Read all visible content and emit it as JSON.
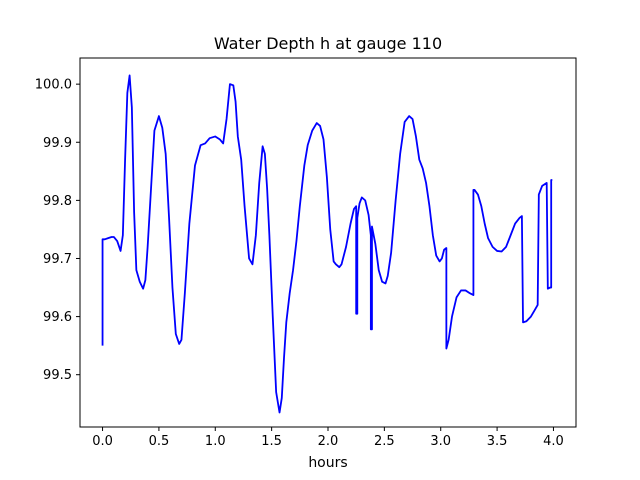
{
  "chart_data": {
    "type": "line",
    "title": "Water Depth h at gauge 110",
    "xlabel": "hours",
    "ylabel": "",
    "xlim": [
      -0.2,
      4.2
    ],
    "ylim": [
      99.41,
      100.045
    ],
    "xticks": [
      0.0,
      0.5,
      1.0,
      1.5,
      2.0,
      2.5,
      3.0,
      3.5,
      4.0
    ],
    "xtick_labels": [
      "0.0",
      "0.5",
      "1.0",
      "1.5",
      "2.0",
      "2.5",
      "3.0",
      "3.5",
      "4.0"
    ],
    "yticks": [
      99.5,
      99.6,
      99.7,
      99.8,
      99.9,
      100.0
    ],
    "ytick_labels": [
      "99.5",
      "99.6",
      "99.7",
      "99.8",
      "99.9",
      "100.0"
    ],
    "grid": false,
    "line_color": "#0000ff",
    "series": [
      {
        "x": [
          0.0,
          0.0,
          0.02,
          0.05,
          0.08,
          0.1,
          0.13,
          0.16,
          0.18,
          0.2,
          0.22,
          0.24,
          0.26,
          0.28,
          0.3,
          0.33,
          0.36,
          0.38,
          0.4,
          0.43,
          0.46,
          0.5,
          0.53,
          0.56,
          0.59,
          0.62,
          0.65,
          0.68,
          0.7,
          0.73,
          0.77,
          0.82,
          0.87,
          0.91,
          0.95,
          1.0,
          1.04,
          1.07,
          1.1,
          1.13,
          1.16,
          1.18,
          1.2,
          1.23,
          1.26,
          1.3,
          1.33,
          1.36,
          1.39,
          1.42,
          1.44,
          1.46,
          1.48,
          1.51,
          1.54,
          1.57,
          1.59,
          1.61,
          1.63,
          1.66,
          1.69,
          1.72,
          1.75,
          1.79,
          1.82,
          1.86,
          1.9,
          1.93,
          1.96,
          1.99,
          2.02,
          2.05,
          2.07,
          2.1,
          2.12,
          2.16,
          2.2,
          2.23,
          2.25,
          2.25,
          2.26,
          2.26,
          2.28,
          2.3,
          2.33,
          2.36,
          2.38,
          2.38,
          2.39,
          2.39,
          2.42,
          2.45,
          2.48,
          2.51,
          2.53,
          2.56,
          2.6,
          2.64,
          2.68,
          2.72,
          2.75,
          2.78,
          2.81,
          2.84,
          2.87,
          2.9,
          2.93,
          2.96,
          2.99,
          3.01,
          3.03,
          3.05,
          3.05,
          3.05,
          3.07,
          3.1,
          3.14,
          3.18,
          3.22,
          3.26,
          3.29,
          3.29,
          3.3,
          3.33,
          3.36,
          3.39,
          3.42,
          3.46,
          3.5,
          3.54,
          3.58,
          3.62,
          3.66,
          3.7,
          3.72,
          3.73,
          3.73,
          3.76,
          3.8,
          3.83,
          3.86,
          3.87,
          3.87,
          3.9,
          3.94,
          3.95,
          3.95,
          3.97,
          3.98,
          3.98,
          3.99
        ],
        "y": [
          99.55,
          99.733,
          99.733,
          99.735,
          99.737,
          99.737,
          99.73,
          99.713,
          99.74,
          99.87,
          99.985,
          100.015,
          99.96,
          99.78,
          99.68,
          99.66,
          99.648,
          99.663,
          99.72,
          99.82,
          99.92,
          99.945,
          99.925,
          99.88,
          99.77,
          99.65,
          99.57,
          99.553,
          99.56,
          99.64,
          99.76,
          99.86,
          99.895,
          99.898,
          99.907,
          99.91,
          99.905,
          99.898,
          99.94,
          100.0,
          99.998,
          99.97,
          99.91,
          99.87,
          99.79,
          99.7,
          99.69,
          99.74,
          99.83,
          99.893,
          99.88,
          99.82,
          99.74,
          99.6,
          99.47,
          99.435,
          99.46,
          99.53,
          99.59,
          99.64,
          99.68,
          99.73,
          99.79,
          99.86,
          99.895,
          99.92,
          99.933,
          99.928,
          99.905,
          99.84,
          99.75,
          99.695,
          99.69,
          99.685,
          99.69,
          99.72,
          99.76,
          99.785,
          99.79,
          99.605,
          99.605,
          99.77,
          99.795,
          99.805,
          99.8,
          99.775,
          99.74,
          99.578,
          99.578,
          99.755,
          99.725,
          99.68,
          99.66,
          99.657,
          99.67,
          99.71,
          99.8,
          99.88,
          99.935,
          99.945,
          99.94,
          99.91,
          99.87,
          99.855,
          99.83,
          99.79,
          99.74,
          99.705,
          99.695,
          99.7,
          99.715,
          99.718,
          99.545,
          99.545,
          99.56,
          99.6,
          99.633,
          99.645,
          99.645,
          99.64,
          99.637,
          99.818,
          99.818,
          99.81,
          99.79,
          99.76,
          99.735,
          99.72,
          99.713,
          99.712,
          99.72,
          99.74,
          99.76,
          99.77,
          99.773,
          99.59,
          99.59,
          99.592,
          99.6,
          99.61,
          99.62,
          99.805,
          99.81,
          99.825,
          99.83,
          99.648,
          99.648,
          99.65,
          99.65,
          99.835,
          99.835
        ]
      }
    ]
  }
}
